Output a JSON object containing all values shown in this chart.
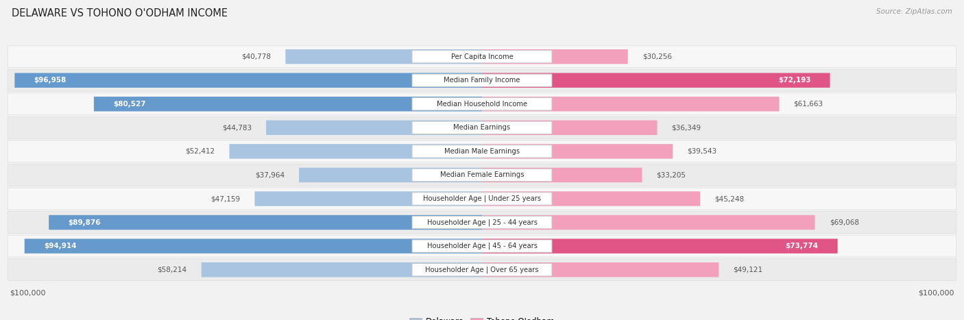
{
  "title": "DELAWARE VS TOHONO O'ODHAM INCOME",
  "source": "Source: ZipAtlas.com",
  "categories": [
    "Per Capita Income",
    "Median Family Income",
    "Median Household Income",
    "Median Earnings",
    "Median Male Earnings",
    "Median Female Earnings",
    "Householder Age | Under 25 years",
    "Householder Age | 25 - 44 years",
    "Householder Age | 45 - 64 years",
    "Householder Age | Over 65 years"
  ],
  "delaware_values": [
    40778,
    96958,
    80527,
    44783,
    52412,
    37964,
    47159,
    89876,
    94914,
    58214
  ],
  "tohono_values": [
    30256,
    72193,
    61663,
    36349,
    39543,
    33205,
    45248,
    69068,
    73774,
    49121
  ],
  "delaware_labels": [
    "$40,778",
    "$96,958",
    "$80,527",
    "$44,783",
    "$52,412",
    "$37,964",
    "$47,159",
    "$89,876",
    "$94,914",
    "$58,214"
  ],
  "tohono_labels": [
    "$30,256",
    "$72,193",
    "$61,663",
    "$36,349",
    "$39,543",
    "$33,205",
    "$45,248",
    "$69,068",
    "$73,774",
    "$49,121"
  ],
  "max_value": 100000,
  "delaware_color_light": "#a8c4e0",
  "delaware_color_dark": "#6699cc",
  "tohono_color_light": "#f2a0bb",
  "tohono_color_dark": "#e05585",
  "label_color_outside": "#555555",
  "label_color_inside": "#ffffff",
  "background_color": "#f2f2f2",
  "row_bg_odd": "#f7f7f7",
  "row_bg_even": "#ebebeb",
  "center_label_bg": "#ffffff",
  "center_label_border": "#cccccc",
  "legend_delaware": "Delaware",
  "legend_tohono": "Tohono O'odham",
  "xlabel_left": "$100,000",
  "xlabel_right": "$100,000",
  "large_threshold": 70000
}
